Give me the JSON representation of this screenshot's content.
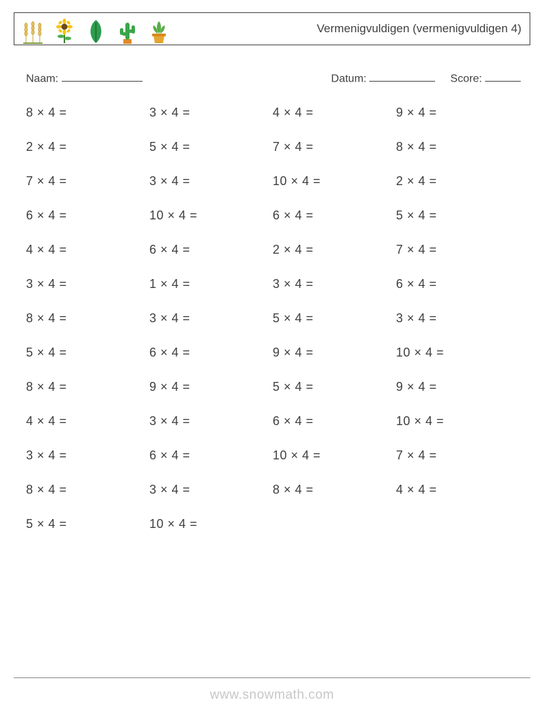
{
  "header": {
    "title": "Vermenigvuldigen (vermenigvuldigen 4)",
    "icons": [
      "wheat",
      "sunflower",
      "leaf",
      "cactus",
      "succulent"
    ]
  },
  "meta": {
    "name_label": "Naam:",
    "date_label": "Datum:",
    "score_label": "Score:"
  },
  "worksheet": {
    "operator": "×",
    "multiplier": 4,
    "equals": "=",
    "columns": 4,
    "text_color": "#404040",
    "fontsize": 18,
    "rows": [
      [
        8,
        3,
        4,
        9
      ],
      [
        2,
        5,
        7,
        8
      ],
      [
        7,
        3,
        10,
        2
      ],
      [
        6,
        10,
        6,
        5
      ],
      [
        4,
        6,
        2,
        7
      ],
      [
        3,
        1,
        3,
        6
      ],
      [
        8,
        3,
        5,
        3
      ],
      [
        5,
        6,
        9,
        10
      ],
      [
        8,
        9,
        5,
        9
      ],
      [
        4,
        3,
        6,
        10
      ],
      [
        3,
        6,
        10,
        7
      ],
      [
        8,
        3,
        8,
        4
      ],
      [
        5,
        10,
        null,
        null
      ]
    ]
  },
  "footer": {
    "text": "www.snowmath.com",
    "text_color": "#c7c7c7",
    "line_color": "#888888"
  },
  "colors": {
    "border": "#404040",
    "background": "#ffffff"
  }
}
